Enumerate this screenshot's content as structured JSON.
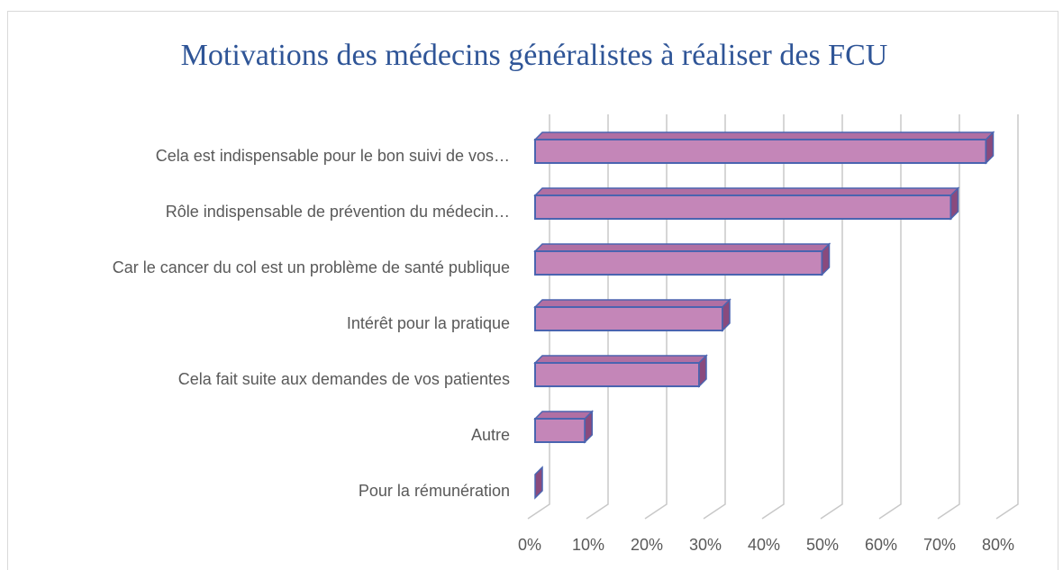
{
  "chart_data": {
    "type": "bar3d_horizontal",
    "title": "Motivations des médecins généralistes à réaliser des FCU",
    "categories": [
      "Cela est indispensable pour le bon suivi de vos…",
      "Rôle indispensable de prévention du médecin…",
      "Car le cancer du col est un problème de santé publique",
      "Intérêt pour la pratique",
      "Cela fait suite aux demandes de vos patientes",
      "Autre",
      "Pour la rémunération"
    ],
    "values": [
      77,
      71,
      49,
      32,
      28,
      8.5,
      0
    ],
    "color": "#c486b8",
    "xlim": [
      0,
      80
    ],
    "xticks": [
      {
        "value": 0,
        "label": "0%"
      },
      {
        "value": 10,
        "label": "10%"
      },
      {
        "value": 20,
        "label": "20%"
      },
      {
        "value": 30,
        "label": "30%"
      },
      {
        "value": 40,
        "label": "40%"
      },
      {
        "value": 50,
        "label": "50%"
      },
      {
        "value": 60,
        "label": "60%"
      },
      {
        "value": 70,
        "label": "70%"
      },
      {
        "value": 80,
        "label": "80%"
      }
    ],
    "grid": true
  }
}
